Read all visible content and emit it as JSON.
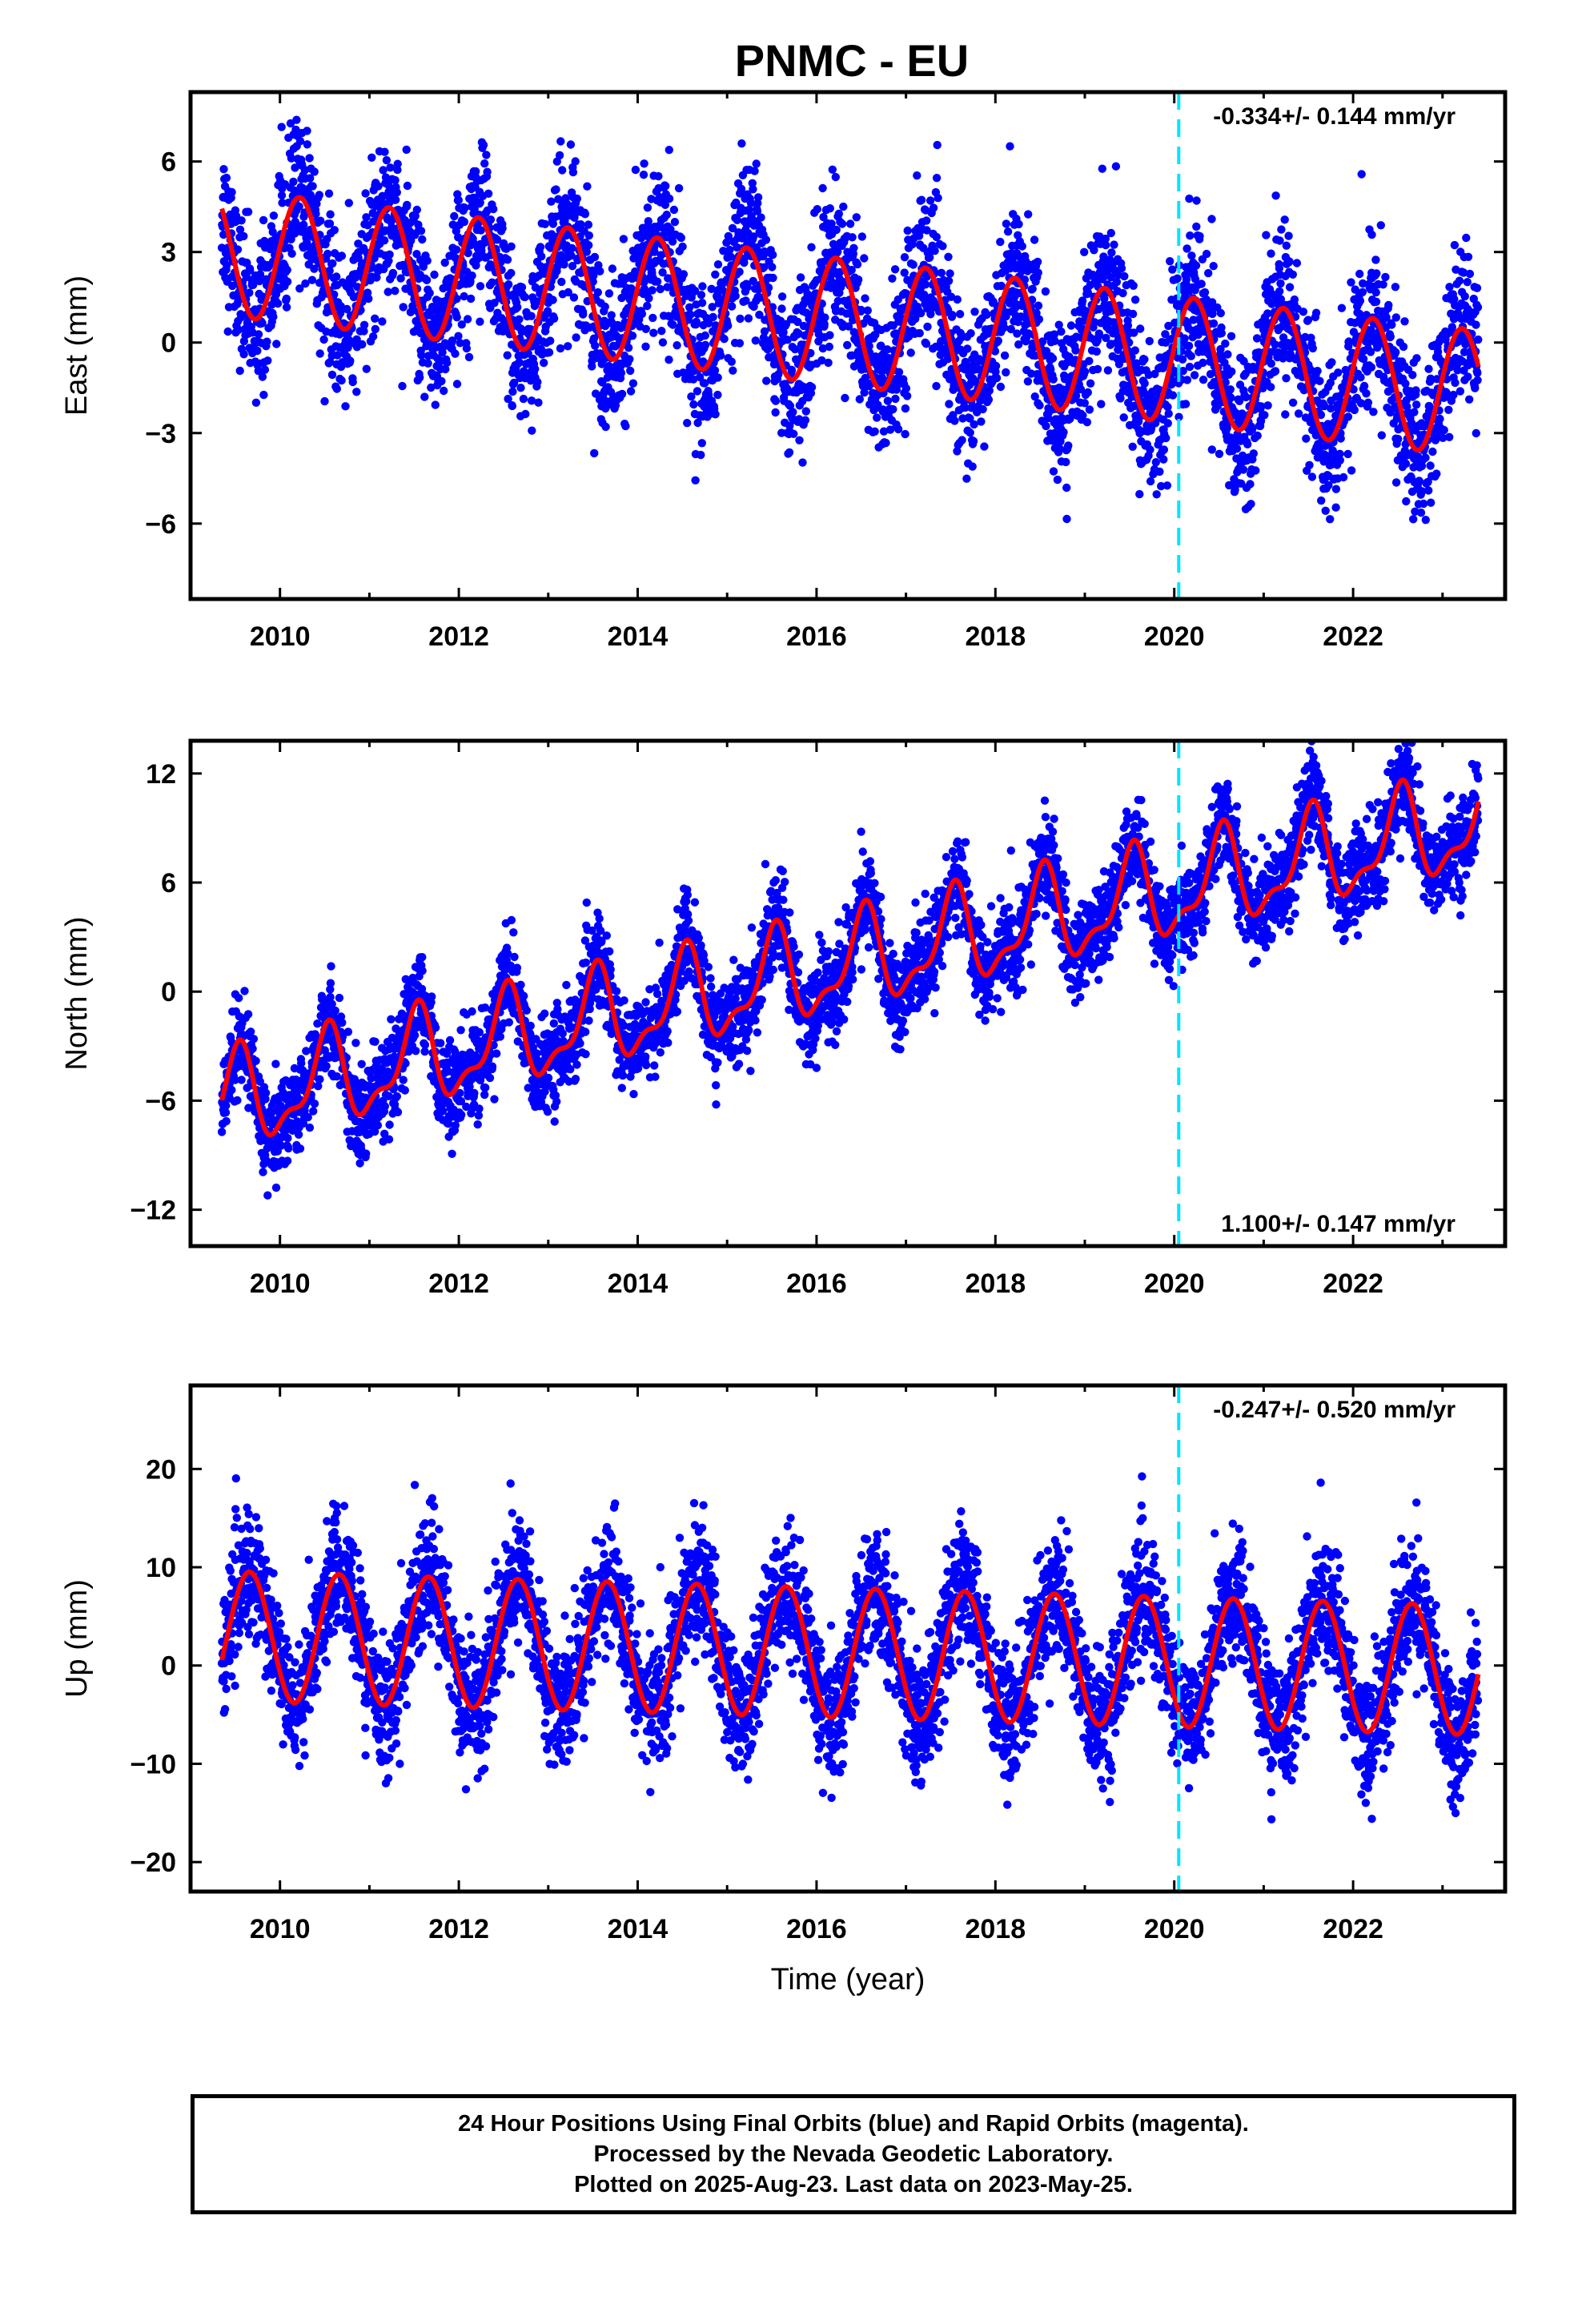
{
  "title": "PNMC - EU",
  "colors": {
    "points": "#0000ff",
    "model": "#ff0000",
    "marker": "#00e5ff",
    "frame": "#000000"
  },
  "xaxis": {
    "label": "Time (year)",
    "range": [
      2009.0,
      2023.7
    ],
    "ticks": [
      2010,
      2012,
      2014,
      2016,
      2018,
      2020,
      2022
    ],
    "tick_labels": [
      "2010",
      "2012",
      "2014",
      "2016",
      "2018",
      "2020",
      "2022"
    ]
  },
  "vertical_marker": {
    "x": 2020.05,
    "style": "dashed"
  },
  "chart_data": [
    {
      "type": "scatter",
      "component": "east",
      "ylabel": "East (mm)",
      "ylim": [
        -8.5,
        8.3
      ],
      "yticks": [
        -6,
        -3,
        0,
        3,
        6
      ],
      "ytick_labels": [
        "−6",
        "−3",
        "0",
        "3",
        "6"
      ],
      "rate_label": "-0.334+/- 0.144 mm/yr",
      "rate_position": "top-right",
      "x_start": 2009.35,
      "x_end": 2023.4,
      "model": {
        "offset": 3.0,
        "slope": -0.334,
        "annual_amp": 2.1,
        "phase_year": 0.22,
        "ref_year": 2009.35
      },
      "series": [
        {
          "name": "",
          "kind": "points",
          "color": "#0000ff"
        },
        {
          "name": "",
          "kind": "model",
          "color": "#ff0000"
        }
      ]
    },
    {
      "type": "scatter",
      "component": "north",
      "ylabel": "North (mm)",
      "ylim": [
        -14.0,
        13.8
      ],
      "yticks": [
        -12,
        -6,
        0,
        6,
        12
      ],
      "ytick_labels": [
        "−12",
        "−6",
        "0",
        "6",
        "12"
      ],
      "rate_label": "1.100+/- 0.147 mm/yr",
      "rate_position": "bottom-right",
      "x_start": 2009.35,
      "x_end": 2023.4,
      "model": {
        "offset": -6.2,
        "slope": 1.1,
        "annual_amp": 2.4,
        "semi_amp": 1.0,
        "phase_year": 0.52,
        "ref_year": 2009.35
      },
      "series": [
        {
          "name": "",
          "kind": "points",
          "color": "#0000ff"
        },
        {
          "name": "",
          "kind": "model",
          "color": "#ff0000"
        }
      ]
    },
    {
      "type": "scatter",
      "component": "up",
      "ylabel": "Up (mm)",
      "ylim": [
        -23.0,
        28.5
      ],
      "yticks": [
        -20,
        -10,
        0,
        10,
        20
      ],
      "ytick_labels": [
        "−20",
        "−10",
        "0",
        "10",
        "20"
      ],
      "rate_label": "-0.247+/- 0.520 mm/yr",
      "rate_position": "top-right",
      "x_start": 2009.35,
      "x_end": 2023.4,
      "model": {
        "offset": 3.0,
        "slope": -0.247,
        "annual_amp": 6.6,
        "phase_year": 0.66,
        "ref_year": 2009.35
      },
      "series": [
        {
          "name": "",
          "kind": "points",
          "color": "#0000ff"
        },
        {
          "name": "",
          "kind": "model",
          "color": "#ff0000"
        }
      ]
    }
  ],
  "footer": {
    "line1": "24 Hour Positions Using Final Orbits (blue) and Rapid Orbits (magenta).",
    "line2": "Processed by the Nevada Geodetic Laboratory.",
    "line3": "Plotted on 2025-Aug-23. Last data on 2023-May-25."
  }
}
